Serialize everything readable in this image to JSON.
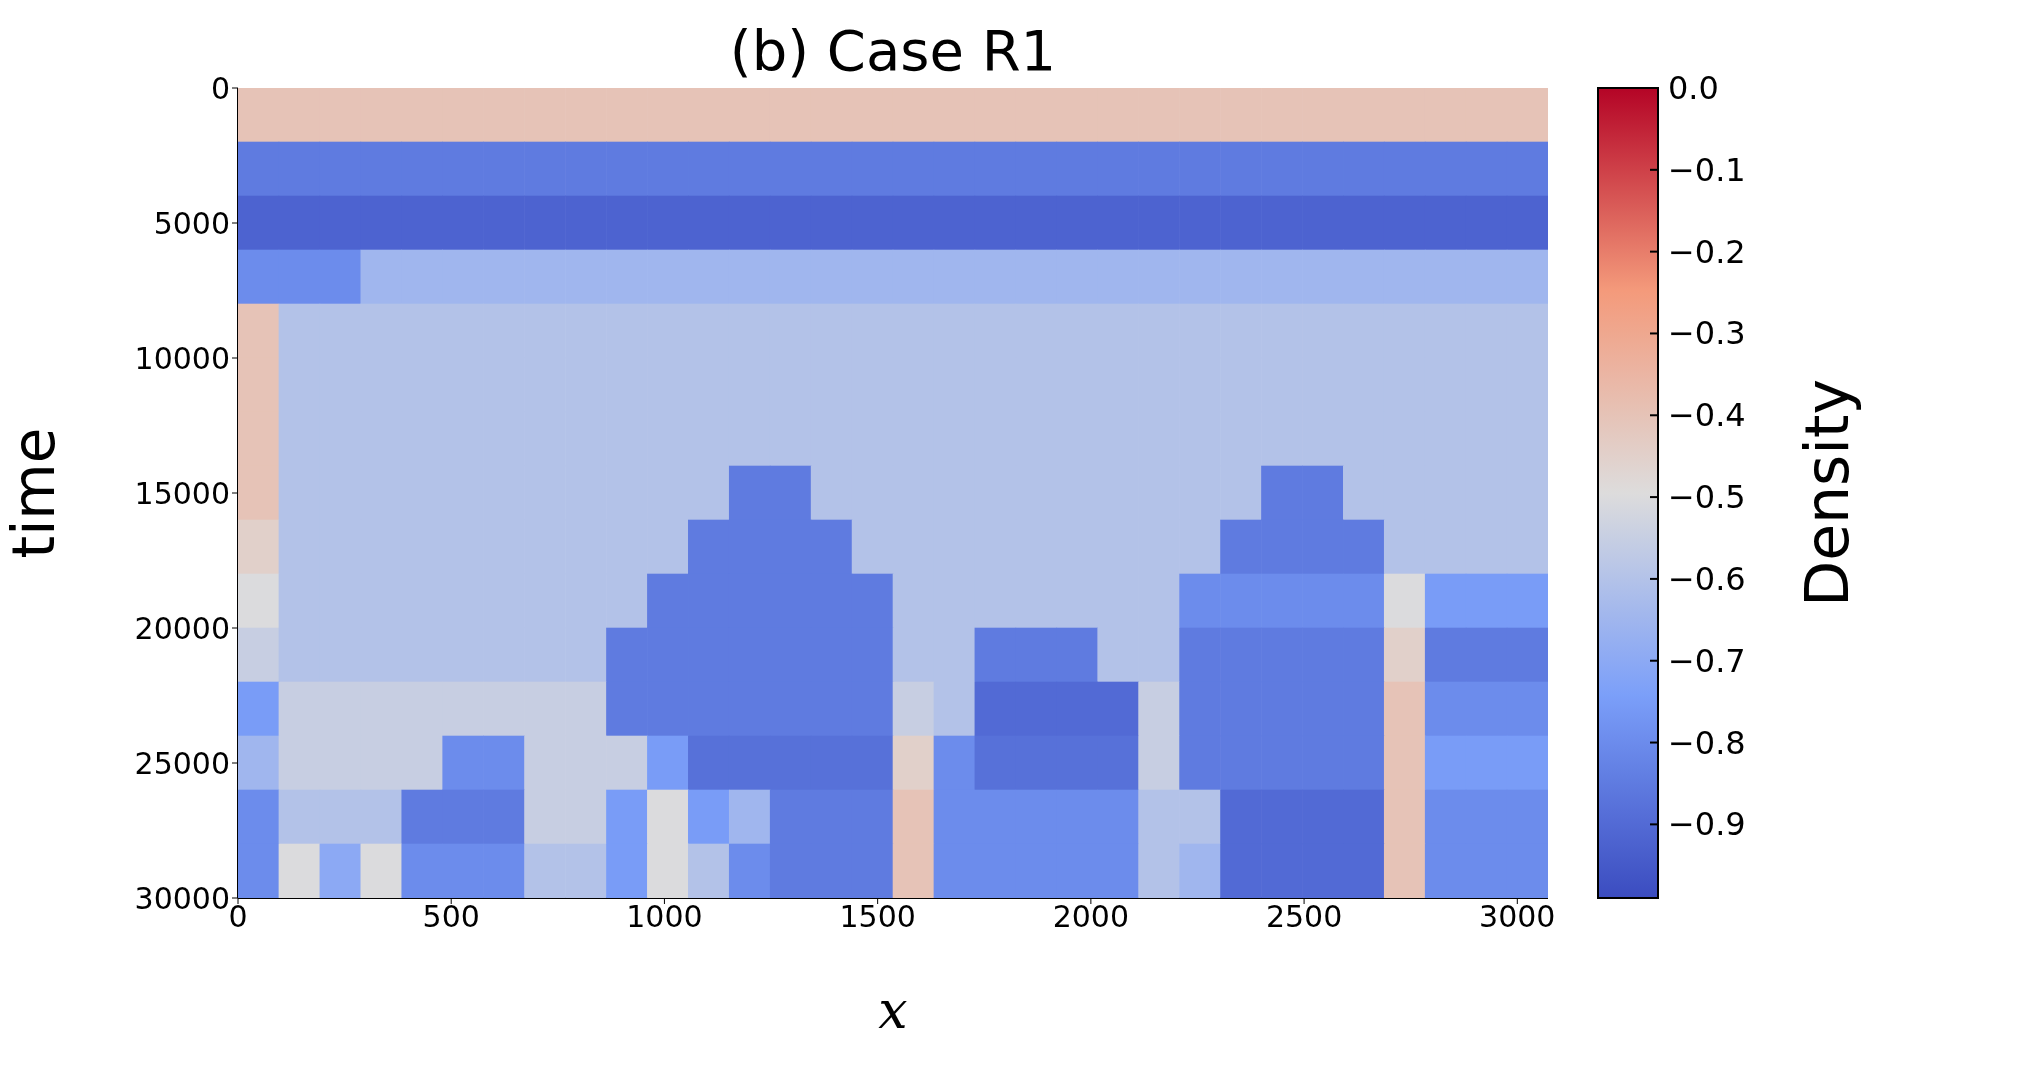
{
  "chart_data": {
    "type": "heatmap",
    "title": "(b) Case R1",
    "xlabel": "x",
    "ylabel": "time",
    "clabel": "Density",
    "xlim": [
      0,
      3072
    ],
    "xticks": [
      0,
      500,
      1000,
      1500,
      2000,
      2500,
      3000
    ],
    "ylim": [
      30000,
      0
    ],
    "yticks": [
      0,
      5000,
      10000,
      15000,
      20000,
      25000,
      30000
    ],
    "clim": [
      -0.99,
      0
    ],
    "cticks": [
      {
        "value": 0,
        "label": "0.0"
      },
      {
        "value": -0.1,
        "label": "−0.1"
      },
      {
        "value": -0.2,
        "label": "−0.2"
      },
      {
        "value": -0.3,
        "label": "−0.3"
      },
      {
        "value": -0.4,
        "label": "−0.4"
      },
      {
        "value": -0.5,
        "label": "−0.5"
      },
      {
        "value": -0.6,
        "label": "−0.6"
      },
      {
        "value": -0.7,
        "label": "−0.7"
      },
      {
        "value": -0.8,
        "label": "−0.8"
      },
      {
        "value": -0.9,
        "label": "−0.9"
      }
    ],
    "x": [
      48,
      144,
      240,
      336,
      432,
      528,
      624,
      720,
      816,
      912,
      1008,
      1104,
      1200,
      1296,
      1392,
      1488,
      1584,
      1680,
      1776,
      1872,
      1968,
      2064,
      2160,
      2256,
      2352,
      2448,
      2544,
      2640,
      2736,
      2832,
      2928,
      3024
    ],
    "y": [
      1000,
      3000,
      5000,
      7000,
      9000,
      11000,
      13000,
      15000,
      17000,
      19000,
      21000,
      23000,
      25000,
      27000,
      29000
    ],
    "cells": [
      [
        -0.4,
        -0.4,
        -0.4,
        -0.4,
        -0.4,
        -0.4,
        -0.4,
        -0.4,
        -0.4,
        -0.4,
        -0.4,
        -0.4,
        -0.4,
        -0.4,
        -0.4,
        -0.4,
        -0.4,
        -0.4,
        -0.4,
        -0.4,
        -0.4,
        -0.4,
        -0.4,
        -0.4,
        -0.4,
        -0.4,
        -0.4,
        -0.4,
        -0.4,
        -0.4,
        -0.4,
        -0.4
      ],
      [
        -0.85,
        -0.85,
        -0.85,
        -0.85,
        -0.85,
        -0.85,
        -0.85,
        -0.85,
        -0.85,
        -0.85,
        -0.85,
        -0.85,
        -0.85,
        -0.85,
        -0.85,
        -0.85,
        -0.85,
        -0.85,
        -0.85,
        -0.85,
        -0.85,
        -0.85,
        -0.85,
        -0.85,
        -0.85,
        -0.85,
        -0.85,
        -0.85,
        -0.85,
        -0.85,
        -0.85,
        -0.85
      ],
      [
        -0.92,
        -0.92,
        -0.92,
        -0.92,
        -0.92,
        -0.92,
        -0.92,
        -0.92,
        -0.92,
        -0.92,
        -0.92,
        -0.92,
        -0.92,
        -0.92,
        -0.92,
        -0.92,
        -0.92,
        -0.92,
        -0.92,
        -0.92,
        -0.92,
        -0.92,
        -0.92,
        -0.92,
        -0.92,
        -0.92,
        -0.92,
        -0.92,
        -0.92,
        -0.92,
        -0.92,
        -0.92
      ],
      [
        -0.8,
        -0.8,
        -0.8,
        -0.65,
        -0.65,
        -0.65,
        -0.65,
        -0.65,
        -0.65,
        -0.65,
        -0.65,
        -0.65,
        -0.65,
        -0.65,
        -0.65,
        -0.65,
        -0.65,
        -0.65,
        -0.65,
        -0.65,
        -0.65,
        -0.65,
        -0.65,
        -0.65,
        -0.65,
        -0.65,
        -0.65,
        -0.65,
        -0.65,
        -0.65,
        -0.65,
        -0.65
      ],
      [
        -0.4,
        -0.6,
        -0.6,
        -0.6,
        -0.6,
        -0.6,
        -0.6,
        -0.6,
        -0.6,
        -0.6,
        -0.6,
        -0.6,
        -0.6,
        -0.6,
        -0.6,
        -0.6,
        -0.6,
        -0.6,
        -0.6,
        -0.6,
        -0.6,
        -0.6,
        -0.6,
        -0.6,
        -0.6,
        -0.6,
        -0.6,
        -0.6,
        -0.6,
        -0.6,
        -0.6,
        -0.6
      ],
      [
        -0.4,
        -0.6,
        -0.6,
        -0.6,
        -0.6,
        -0.6,
        -0.6,
        -0.6,
        -0.6,
        -0.6,
        -0.6,
        -0.6,
        -0.6,
        -0.6,
        -0.6,
        -0.6,
        -0.6,
        -0.6,
        -0.6,
        -0.6,
        -0.6,
        -0.6,
        -0.6,
        -0.6,
        -0.6,
        -0.6,
        -0.6,
        -0.6,
        -0.6,
        -0.6,
        -0.6,
        -0.6
      ],
      [
        -0.4,
        -0.6,
        -0.6,
        -0.6,
        -0.6,
        -0.6,
        -0.6,
        -0.6,
        -0.6,
        -0.6,
        -0.6,
        -0.6,
        -0.6,
        -0.6,
        -0.6,
        -0.6,
        -0.6,
        -0.6,
        -0.6,
        -0.6,
        -0.6,
        -0.6,
        -0.6,
        -0.6,
        -0.6,
        -0.6,
        -0.6,
        -0.6,
        -0.6,
        -0.6,
        -0.6,
        -0.6
      ],
      [
        -0.4,
        -0.6,
        -0.6,
        -0.6,
        -0.6,
        -0.6,
        -0.6,
        -0.6,
        -0.6,
        -0.6,
        -0.6,
        -0.6,
        -0.85,
        -0.85,
        -0.6,
        -0.6,
        -0.6,
        -0.6,
        -0.6,
        -0.6,
        -0.6,
        -0.6,
        -0.6,
        -0.6,
        -0.6,
        -0.85,
        -0.85,
        -0.6,
        -0.6,
        -0.6,
        -0.6,
        -0.6
      ],
      [
        -0.45,
        -0.6,
        -0.6,
        -0.6,
        -0.6,
        -0.6,
        -0.6,
        -0.6,
        -0.6,
        -0.6,
        -0.6,
        -0.85,
        -0.85,
        -0.85,
        -0.85,
        -0.6,
        -0.6,
        -0.6,
        -0.6,
        -0.6,
        -0.6,
        -0.6,
        -0.6,
        -0.6,
        -0.85,
        -0.85,
        -0.85,
        -0.85,
        -0.6,
        -0.6,
        -0.6,
        -0.6
      ],
      [
        -0.5,
        -0.6,
        -0.6,
        -0.6,
        -0.6,
        -0.6,
        -0.6,
        -0.6,
        -0.6,
        -0.6,
        -0.85,
        -0.85,
        -0.85,
        -0.85,
        -0.85,
        -0.85,
        -0.6,
        -0.6,
        -0.6,
        -0.6,
        -0.6,
        -0.6,
        -0.6,
        -0.8,
        -0.8,
        -0.8,
        -0.8,
        -0.8,
        -0.5,
        -0.75,
        -0.75,
        -0.75
      ],
      [
        -0.55,
        -0.6,
        -0.6,
        -0.6,
        -0.6,
        -0.6,
        -0.6,
        -0.6,
        -0.6,
        -0.85,
        -0.85,
        -0.85,
        -0.85,
        -0.85,
        -0.85,
        -0.85,
        -0.6,
        -0.6,
        -0.85,
        -0.85,
        -0.85,
        -0.6,
        -0.6,
        -0.85,
        -0.85,
        -0.85,
        -0.85,
        -0.85,
        -0.45,
        -0.85,
        -0.85,
        -0.85
      ],
      [
        -0.75,
        -0.55,
        -0.55,
        -0.55,
        -0.55,
        -0.55,
        -0.55,
        -0.55,
        -0.55,
        -0.85,
        -0.85,
        -0.85,
        -0.85,
        -0.85,
        -0.85,
        -0.85,
        -0.55,
        -0.6,
        -0.9,
        -0.9,
        -0.9,
        -0.9,
        -0.55,
        -0.85,
        -0.85,
        -0.85,
        -0.85,
        -0.85,
        -0.4,
        -0.8,
        -0.8,
        -0.8
      ],
      [
        -0.65,
        -0.55,
        -0.55,
        -0.55,
        -0.55,
        -0.8,
        -0.8,
        -0.55,
        -0.55,
        -0.55,
        -0.75,
        -0.88,
        -0.88,
        -0.88,
        -0.88,
        -0.88,
        -0.45,
        -0.8,
        -0.88,
        -0.88,
        -0.88,
        -0.88,
        -0.55,
        -0.85,
        -0.85,
        -0.85,
        -0.85,
        -0.85,
        -0.4,
        -0.75,
        -0.75,
        -0.75
      ],
      [
        -0.8,
        -0.6,
        -0.6,
        -0.6,
        -0.85,
        -0.85,
        -0.85,
        -0.55,
        -0.55,
        -0.75,
        -0.5,
        -0.75,
        -0.65,
        -0.85,
        -0.85,
        -0.85,
        -0.4,
        -0.8,
        -0.8,
        -0.8,
        -0.8,
        -0.8,
        -0.6,
        -0.6,
        -0.9,
        -0.9,
        -0.9,
        -0.9,
        -0.4,
        -0.8,
        -0.8,
        -0.8
      ],
      [
        -0.8,
        -0.5,
        -0.7,
        -0.5,
        -0.8,
        -0.8,
        -0.8,
        -0.6,
        -0.6,
        -0.75,
        -0.5,
        -0.6,
        -0.8,
        -0.85,
        -0.85,
        -0.85,
        -0.4,
        -0.8,
        -0.8,
        -0.8,
        -0.8,
        -0.8,
        -0.6,
        -0.65,
        -0.9,
        -0.9,
        -0.9,
        -0.9,
        -0.4,
        -0.8,
        -0.8,
        -0.8
      ]
    ]
  }
}
